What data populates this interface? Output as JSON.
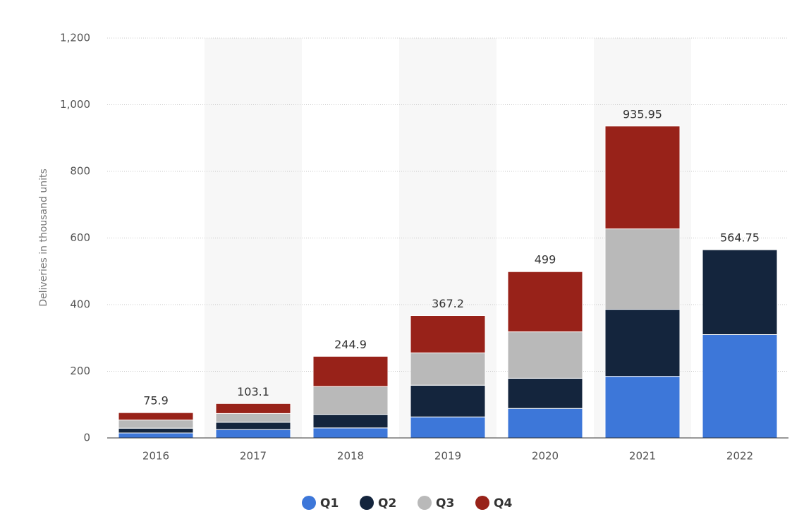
{
  "chart_data": {
    "type": "stacked_bar",
    "y_label": "Deliveries in thousand units",
    "categories": [
      "2016",
      "2017",
      "2018",
      "2019",
      "2020",
      "2021",
      "2022"
    ],
    "series": [
      {
        "name": "Q1",
        "color": "#3d77d9",
        "values": [
          14.8,
          25,
          29.98,
          63,
          88.4,
          184.8,
          310.05
        ]
      },
      {
        "name": "Q2",
        "color": "#14253d",
        "values": [
          14.4,
          22,
          40.74,
          95.2,
          90.65,
          201.25,
          254.7
        ]
      },
      {
        "name": "Q3",
        "color": "#b9b9b9",
        "values": [
          24.5,
          26.2,
          83.5,
          97,
          139.3,
          241.3,
          null
        ]
      },
      {
        "name": "Q4",
        "color": "#982219",
        "values": [
          22.2,
          29.9,
          90.7,
          112,
          180.65,
          308.6,
          null
        ]
      }
    ],
    "totals": [
      75.9,
      103.1,
      244.9,
      367.2,
      499,
      935.95,
      564.75
    ],
    "ylim": [
      0,
      1200
    ],
    "yticks": [
      0,
      200,
      400,
      600,
      800,
      {
        "value": 1000,
        "label": "1,000"
      },
      {
        "value": 1200,
        "label": "1,200"
      }
    ],
    "grid": true
  }
}
